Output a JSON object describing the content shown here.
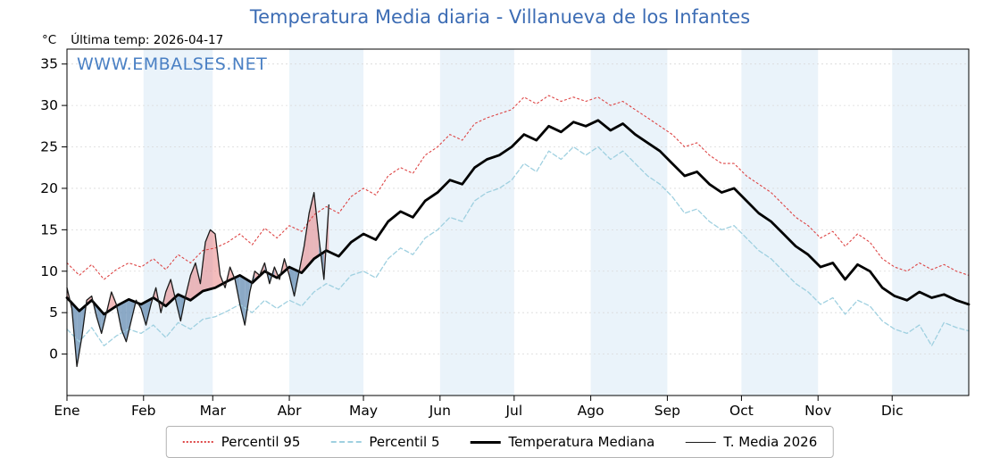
{
  "header": {
    "last_temp": "Última temp: 2026-04-17"
  },
  "watermark": "WWW.EMBALSES.NET",
  "chart_data": {
    "type": "line",
    "title": "Temperatura Media diaria - Villanueva de los Infantes",
    "xlabel": "",
    "ylabel": "°C",
    "legend_position": "bottom",
    "grid": true,
    "months": [
      "Ene",
      "Feb",
      "Mar",
      "Abr",
      "May",
      "Jun",
      "Jul",
      "Ago",
      "Sep",
      "Oct",
      "Nov",
      "Dic"
    ],
    "month_start_days": [
      0,
      31,
      59,
      90,
      120,
      151,
      181,
      212,
      243,
      273,
      304,
      334
    ],
    "days_in_year": 365,
    "shaded_months": [
      1,
      3,
      5,
      7,
      9,
      11
    ],
    "ylim": [
      -5,
      36.8
    ],
    "yticks": [
      0,
      5,
      10,
      15,
      20,
      25,
      30,
      35
    ],
    "colors": {
      "band": "#eaf3fa",
      "grid": "#d9d9d9",
      "frame": "#000000",
      "p95": "#dd4444",
      "p5": "#9fd0e0",
      "median": "#000000",
      "t2026": "#1a1a1a",
      "fill_above": "#e87a7a",
      "fill_below": "#6e93b8",
      "title_color": "#3c6cb4",
      "watermark_color": "#4a80c4"
    },
    "series": [
      {
        "name": "Percentil 95",
        "role": "p95",
        "x_start": 0,
        "x_step_days": 5,
        "values": [
          11.0,
          9.5,
          10.8,
          9.0,
          10.2,
          11.0,
          10.5,
          11.5,
          10.2,
          12.0,
          11.0,
          12.5,
          12.8,
          13.5,
          14.5,
          13.2,
          15.2,
          14.0,
          15.5,
          14.8,
          16.8,
          17.8,
          17.0,
          19.0,
          20.0,
          19.2,
          21.5,
          22.5,
          21.8,
          24.0,
          25.0,
          26.5,
          25.8,
          27.8,
          28.5,
          29.0,
          29.5,
          31.0,
          30.2,
          31.2,
          30.5,
          31.0,
          30.5,
          31.0,
          30.0,
          30.5,
          29.5,
          28.5,
          27.5,
          26.5,
          25.0,
          25.5,
          24.0,
          23.0,
          23.0,
          21.5,
          20.5,
          19.5,
          18.0,
          16.5,
          15.5,
          14.0,
          14.8,
          13.0,
          14.5,
          13.5,
          11.5,
          10.5,
          10.0,
          11.0,
          10.2,
          10.8,
          10.0,
          9.5
        ]
      },
      {
        "name": "Percentil 5",
        "role": "p5",
        "x_start": 0,
        "x_step_days": 5,
        "values": [
          3.0,
          1.5,
          3.2,
          1.0,
          2.2,
          3.0,
          2.5,
          3.5,
          2.0,
          3.8,
          3.0,
          4.2,
          4.5,
          5.2,
          6.0,
          5.0,
          6.5,
          5.5,
          6.5,
          5.8,
          7.5,
          8.5,
          7.8,
          9.5,
          10.0,
          9.2,
          11.5,
          12.8,
          12.0,
          14.0,
          15.0,
          16.5,
          16.0,
          18.5,
          19.5,
          20.0,
          21.0,
          23.0,
          22.0,
          24.5,
          23.5,
          25.0,
          24.0,
          25.0,
          23.5,
          24.5,
          23.0,
          21.5,
          20.5,
          19.0,
          17.0,
          17.5,
          16.0,
          15.0,
          15.5,
          14.0,
          12.5,
          11.5,
          10.0,
          8.5,
          7.5,
          6.0,
          6.8,
          4.8,
          6.5,
          5.8,
          4.0,
          3.0,
          2.5,
          3.5,
          1.0,
          3.8,
          3.2,
          2.8
        ]
      },
      {
        "name": "Temperatura Mediana",
        "role": "median",
        "x_start": 0,
        "x_step_days": 5,
        "values": [
          6.8,
          5.2,
          6.5,
          4.8,
          5.8,
          6.6,
          6.0,
          6.8,
          5.8,
          7.2,
          6.5,
          7.6,
          8.0,
          8.8,
          9.5,
          8.6,
          10.0,
          9.2,
          10.5,
          9.8,
          11.5,
          12.5,
          11.8,
          13.5,
          14.5,
          13.8,
          16.0,
          17.2,
          16.5,
          18.5,
          19.5,
          21.0,
          20.5,
          22.5,
          23.5,
          24.0,
          25.0,
          26.5,
          25.8,
          27.5,
          26.8,
          28.0,
          27.5,
          28.2,
          27.0,
          27.8,
          26.5,
          25.5,
          24.5,
          23.0,
          21.5,
          22.0,
          20.5,
          19.5,
          20.0,
          18.5,
          17.0,
          16.0,
          14.5,
          13.0,
          12.0,
          10.5,
          11.0,
          9.0,
          10.8,
          10.0,
          8.0,
          7.0,
          6.5,
          7.5,
          6.8,
          7.2,
          6.5,
          6.0
        ]
      },
      {
        "name": "T. Media 2026",
        "role": "t2026",
        "x_start": 0,
        "x_step_days": 2,
        "values": [
          8.0,
          5.5,
          -1.5,
          2.0,
          6.5,
          7.0,
          4.5,
          2.5,
          5.0,
          7.5,
          6.0,
          3.0,
          1.5,
          4.0,
          6.5,
          5.5,
          3.5,
          6.0,
          8.0,
          5.0,
          7.5,
          9.0,
          6.5,
          4.0,
          7.0,
          9.5,
          11.0,
          8.5,
          13.5,
          15.0,
          14.5,
          9.5,
          8.0,
          10.5,
          9.0,
          6.0,
          3.5,
          7.5,
          10.0,
          9.5,
          11.0,
          8.5,
          10.5,
          9.0,
          11.5,
          9.5,
          7.0,
          10.0,
          13.0,
          17.0,
          19.5,
          14.0,
          9.0,
          18.0
        ]
      }
    ]
  }
}
